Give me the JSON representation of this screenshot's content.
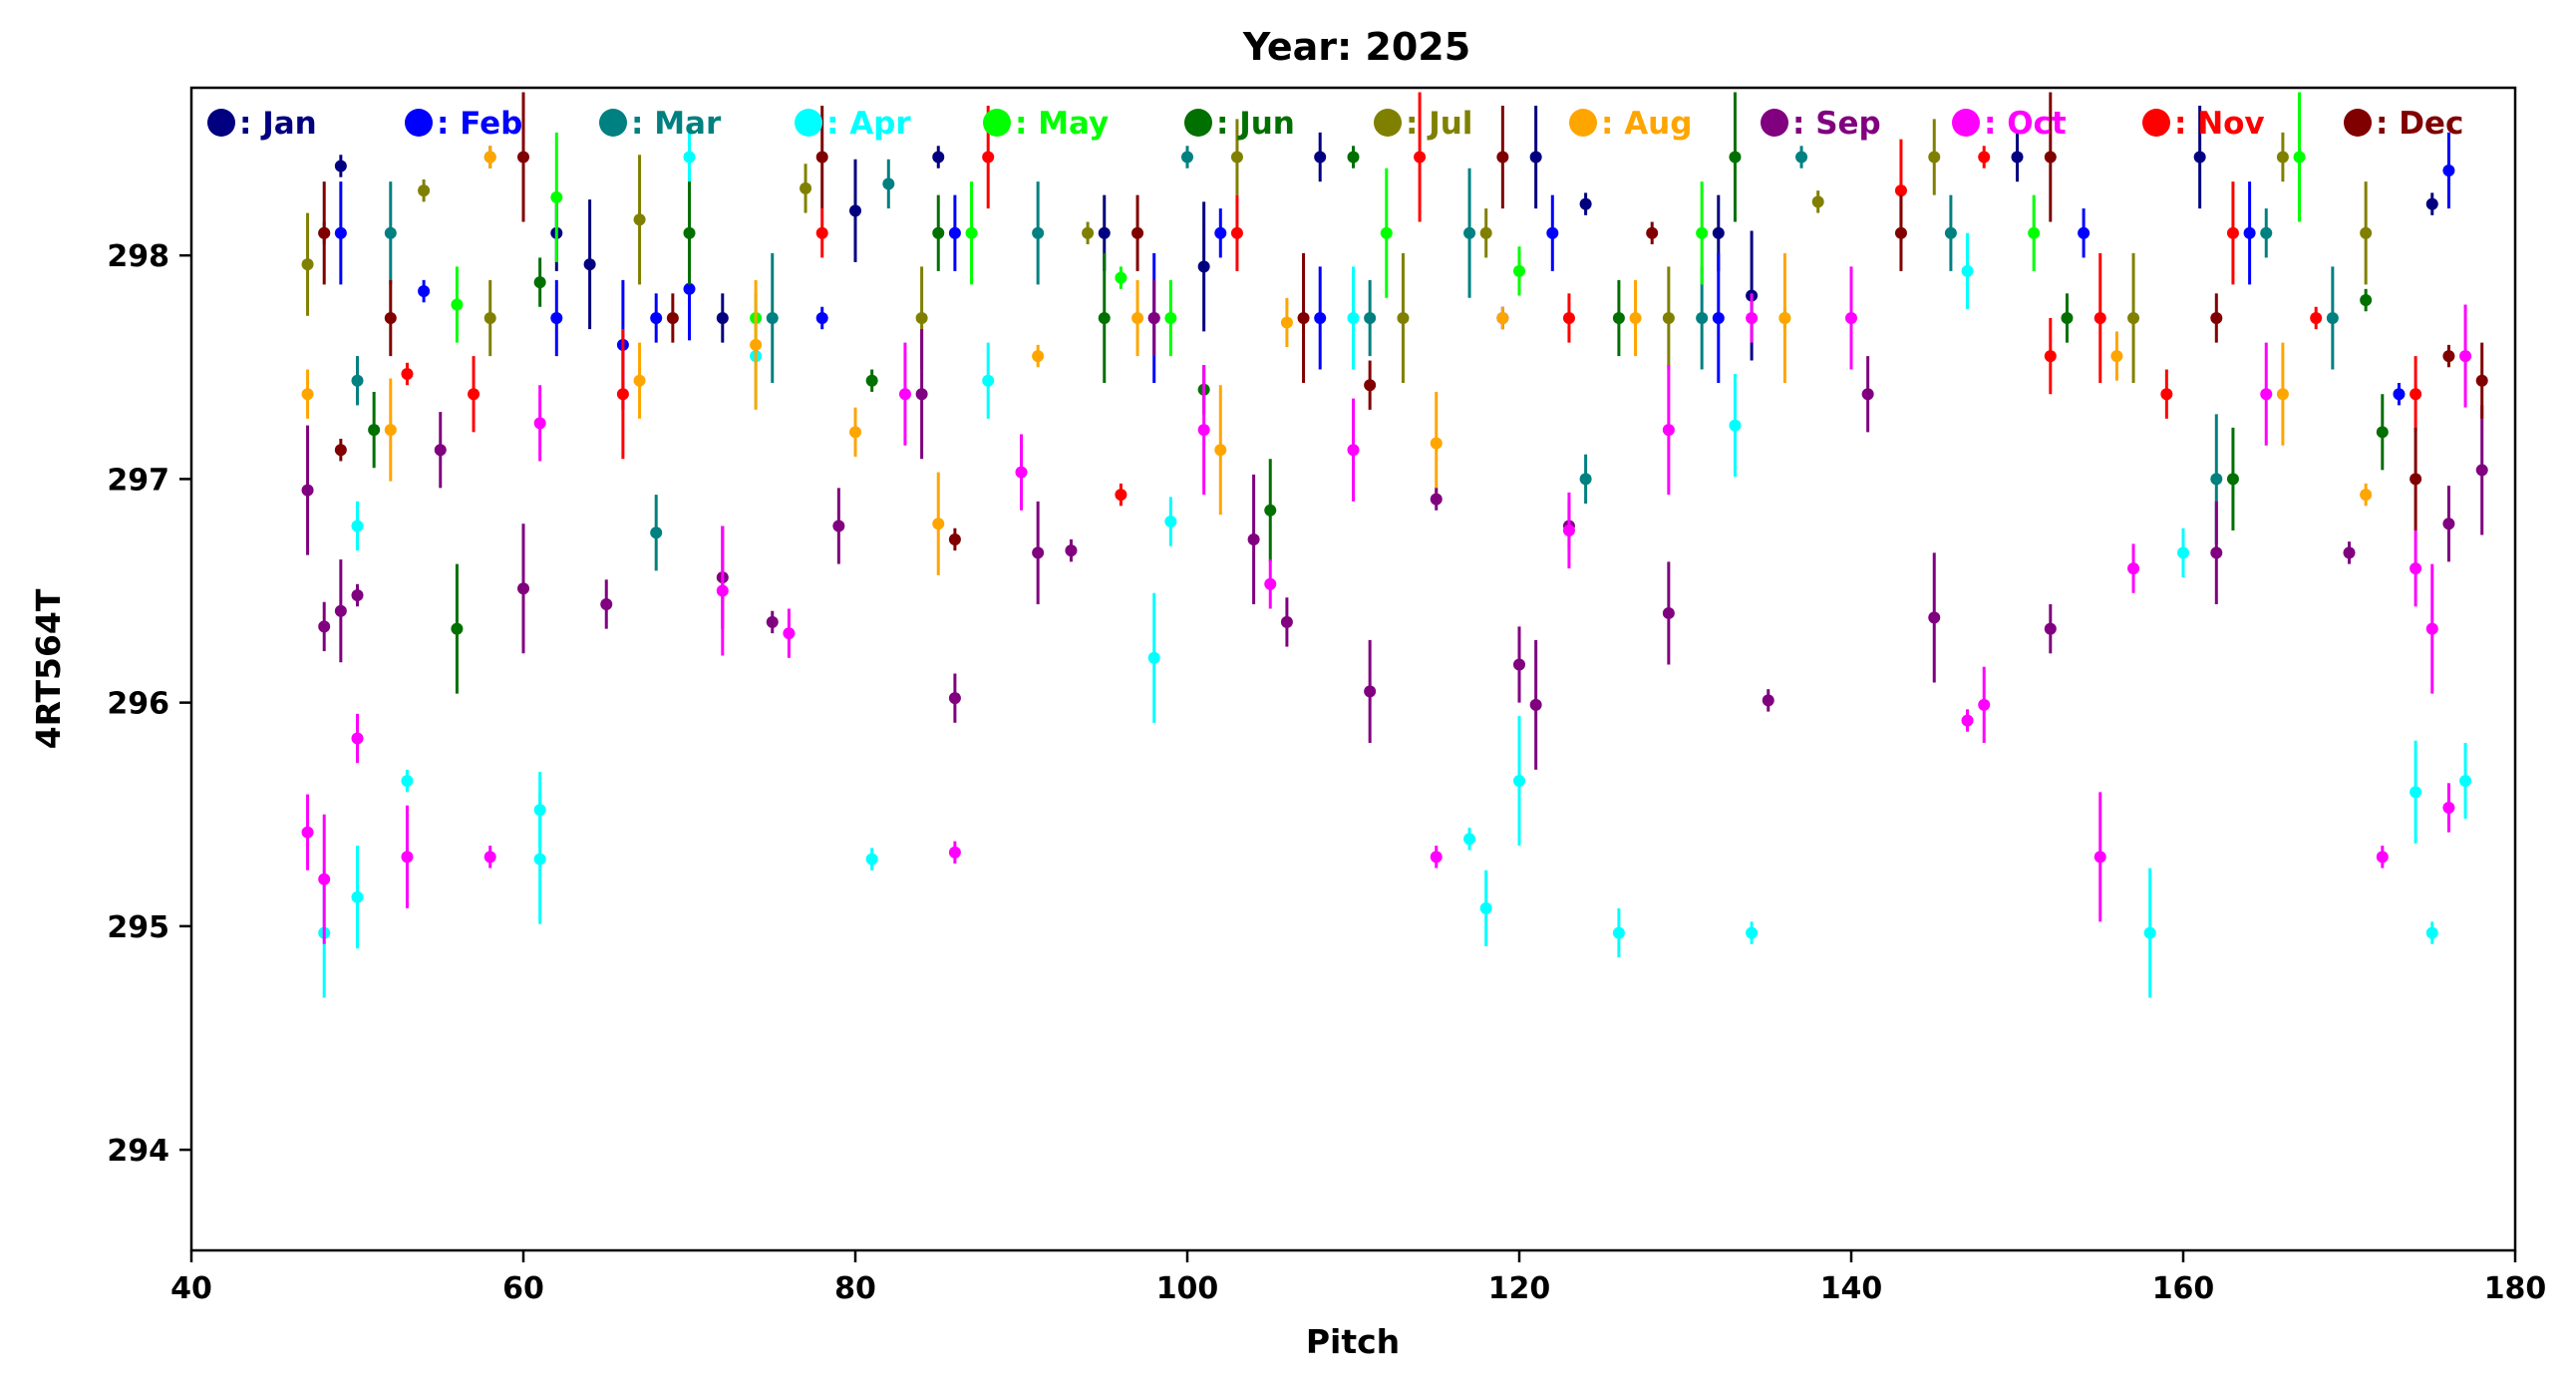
{
  "chart_data": {
    "type": "scatter",
    "title": "Year: 2025",
    "xlabel": "Pitch",
    "ylabel": "4RT564T",
    "xlim": [
      40,
      180
    ],
    "ylim": [
      293.55,
      298.75
    ],
    "xticks": [
      40,
      60,
      80,
      100,
      120,
      140,
      160,
      180
    ],
    "yticks": [
      294,
      295,
      296,
      297,
      298
    ],
    "grid": false,
    "legend_position": "top, inside plot, single row",
    "error_bars": true,
    "series": [
      {
        "name": ": Jan",
        "color": "#000080",
        "points": [
          [
            49,
            298.4
          ],
          [
            62,
            298.1
          ],
          [
            64,
            297.96
          ],
          [
            72,
            297.72
          ],
          [
            80,
            298.2
          ],
          [
            85,
            298.44
          ],
          [
            95,
            298.1
          ],
          [
            101,
            297.95
          ],
          [
            108,
            298.44
          ],
          [
            121,
            298.44
          ],
          [
            124,
            298.23
          ],
          [
            132,
            298.1
          ],
          [
            134,
            297.82
          ],
          [
            150,
            298.44
          ],
          [
            161,
            298.44
          ],
          [
            175,
            298.23
          ]
        ]
      },
      {
        "name": ": Feb",
        "color": "#0000ff",
        "points": [
          [
            49,
            298.1
          ],
          [
            54,
            297.84
          ],
          [
            62,
            297.72
          ],
          [
            66,
            297.6
          ],
          [
            68,
            297.72
          ],
          [
            70,
            297.85
          ],
          [
            78,
            297.72
          ],
          [
            86,
            298.1
          ],
          [
            98,
            297.72
          ],
          [
            102,
            298.1
          ],
          [
            108,
            297.72
          ],
          [
            119,
            297.72
          ],
          [
            122,
            298.1
          ],
          [
            132,
            297.72
          ],
          [
            154,
            298.1
          ],
          [
            164,
            298.1
          ],
          [
            173,
            297.38
          ],
          [
            176,
            298.38
          ]
        ]
      },
      {
        "name": ": Mar",
        "color": "#008080",
        "points": [
          [
            50,
            297.44
          ],
          [
            52,
            298.1
          ],
          [
            58,
            298.44
          ],
          [
            68,
            296.76
          ],
          [
            75,
            297.72
          ],
          [
            82,
            298.32
          ],
          [
            91,
            298.1
          ],
          [
            100,
            298.44
          ],
          [
            111,
            297.72
          ],
          [
            117,
            298.1
          ],
          [
            124,
            297.0
          ],
          [
            131,
            297.72
          ],
          [
            137,
            298.44
          ],
          [
            146,
            298.1
          ],
          [
            162,
            297.0
          ],
          [
            165,
            298.1
          ],
          [
            169,
            297.72
          ]
        ]
      },
      {
        "name": ": Apr",
        "color": "#00ffff",
        "points": [
          [
            48,
            294.97
          ],
          [
            50,
            296.79
          ],
          [
            50,
            295.13
          ],
          [
            53,
            295.65
          ],
          [
            61,
            295.52
          ],
          [
            61,
            295.3
          ],
          [
            70,
            298.44
          ],
          [
            74,
            297.55
          ],
          [
            81,
            295.3
          ],
          [
            88,
            297.44
          ],
          [
            98,
            296.2
          ],
          [
            99,
            296.81
          ],
          [
            110,
            297.72
          ],
          [
            117,
            295.39
          ],
          [
            118,
            295.08
          ],
          [
            120,
            295.65
          ],
          [
            126,
            294.97
          ],
          [
            133,
            297.24
          ],
          [
            134,
            294.97
          ],
          [
            147,
            297.93
          ],
          [
            158,
            294.97
          ],
          [
            160,
            296.67
          ],
          [
            174,
            295.6
          ],
          [
            175,
            294.97
          ],
          [
            177,
            295.65
          ]
        ]
      },
      {
        "name": ": May",
        "color": "#00ff00",
        "points": [
          [
            56,
            297.78
          ],
          [
            62,
            298.26
          ],
          [
            74,
            297.72
          ],
          [
            87,
            298.1
          ],
          [
            96,
            297.9
          ],
          [
            99,
            297.72
          ],
          [
            112,
            298.1
          ],
          [
            120,
            297.93
          ],
          [
            131,
            298.1
          ],
          [
            136,
            297.72
          ],
          [
            151,
            298.1
          ],
          [
            167,
            298.44
          ]
        ]
      },
      {
        "name": ": Jun",
        "color": "#007000",
        "points": [
          [
            48,
            298.1
          ],
          [
            51,
            297.22
          ],
          [
            56,
            296.33
          ],
          [
            61,
            297.88
          ],
          [
            70,
            298.1
          ],
          [
            81,
            297.44
          ],
          [
            85,
            298.1
          ],
          [
            95,
            297.72
          ],
          [
            101,
            297.4
          ],
          [
            105,
            296.86
          ],
          [
            110,
            298.44
          ],
          [
            126,
            297.72
          ],
          [
            133,
            298.44
          ],
          [
            153,
            297.72
          ],
          [
            163,
            297.0
          ],
          [
            171,
            297.8
          ],
          [
            172,
            297.21
          ]
        ]
      },
      {
        "name": ": Jul",
        "color": "#808000",
        "points": [
          [
            47,
            297.96
          ],
          [
            54,
            298.29
          ],
          [
            58,
            297.72
          ],
          [
            67,
            298.16
          ],
          [
            77,
            298.3
          ],
          [
            84,
            297.72
          ],
          [
            94,
            298.1
          ],
          [
            103,
            298.44
          ],
          [
            113,
            297.72
          ],
          [
            118,
            298.1
          ],
          [
            129,
            297.72
          ],
          [
            138,
            298.24
          ],
          [
            145,
            298.44
          ],
          [
            157,
            297.72
          ],
          [
            166,
            298.44
          ],
          [
            171,
            298.1
          ]
        ]
      },
      {
        "name": ": Aug",
        "color": "#ffa500",
        "points": [
          [
            47,
            297.38
          ],
          [
            52,
            297.22
          ],
          [
            58,
            298.44
          ],
          [
            67,
            297.44
          ],
          [
            74,
            297.6
          ],
          [
            80,
            297.21
          ],
          [
            85,
            296.8
          ],
          [
            91,
            297.55
          ],
          [
            97,
            297.72
          ],
          [
            102,
            297.13
          ],
          [
            106,
            297.7
          ],
          [
            115,
            297.16
          ],
          [
            119,
            297.72
          ],
          [
            127,
            297.72
          ],
          [
            136,
            297.72
          ],
          [
            156,
            297.55
          ],
          [
            166,
            297.38
          ],
          [
            171,
            296.93
          ]
        ]
      },
      {
        "name": ": Sep",
        "color": "#800080",
        "points": [
          [
            47,
            296.95
          ],
          [
            48,
            296.34
          ],
          [
            49,
            296.41
          ],
          [
            50,
            296.48
          ],
          [
            55,
            297.13
          ],
          [
            60,
            296.51
          ],
          [
            65,
            296.44
          ],
          [
            72,
            296.56
          ],
          [
            75,
            296.36
          ],
          [
            79,
            296.79
          ],
          [
            84,
            297.38
          ],
          [
            86,
            296.02
          ],
          [
            91,
            296.67
          ],
          [
            93,
            296.68
          ],
          [
            98,
            297.72
          ],
          [
            104,
            296.73
          ],
          [
            106,
            296.36
          ],
          [
            111,
            296.05
          ],
          [
            115,
            296.91
          ],
          [
            120,
            296.17
          ],
          [
            121,
            295.99
          ],
          [
            123,
            296.79
          ],
          [
            129,
            296.4
          ],
          [
            135,
            296.01
          ],
          [
            141,
            297.38
          ],
          [
            145,
            296.38
          ],
          [
            152,
            296.33
          ],
          [
            162,
            296.67
          ],
          [
            170,
            296.67
          ],
          [
            176,
            296.8
          ],
          [
            178,
            297.04
          ]
        ]
      },
      {
        "name": ": Oct",
        "color": "#ff00ff",
        "points": [
          [
            47,
            295.42
          ],
          [
            48,
            295.21
          ],
          [
            50,
            295.84
          ],
          [
            53,
            295.31
          ],
          [
            58,
            295.31
          ],
          [
            61,
            297.25
          ],
          [
            72,
            296.5
          ],
          [
            76,
            296.31
          ],
          [
            83,
            297.38
          ],
          [
            86,
            295.33
          ],
          [
            90,
            297.03
          ],
          [
            101,
            297.22
          ],
          [
            105,
            296.53
          ],
          [
            110,
            297.13
          ],
          [
            115,
            295.31
          ],
          [
            123,
            296.77
          ],
          [
            129,
            297.22
          ],
          [
            134,
            297.72
          ],
          [
            140,
            297.72
          ],
          [
            147,
            295.92
          ],
          [
            148,
            295.99
          ],
          [
            155,
            295.31
          ],
          [
            157,
            296.6
          ],
          [
            165,
            297.38
          ],
          [
            172,
            295.31
          ],
          [
            174,
            296.6
          ],
          [
            175,
            296.33
          ],
          [
            176,
            295.53
          ],
          [
            177,
            297.55
          ]
        ]
      },
      {
        "name": ": Nov",
        "color": "#ff0000",
        "points": [
          [
            53,
            297.47
          ],
          [
            57,
            297.38
          ],
          [
            66,
            297.38
          ],
          [
            78,
            298.1
          ],
          [
            88,
            298.44
          ],
          [
            96,
            296.93
          ],
          [
            103,
            298.1
          ],
          [
            114,
            298.44
          ],
          [
            123,
            297.72
          ],
          [
            143,
            298.29
          ],
          [
            148,
            298.44
          ],
          [
            152,
            297.55
          ],
          [
            155,
            297.72
          ],
          [
            159,
            297.38
          ],
          [
            163,
            298.1
          ],
          [
            168,
            297.72
          ],
          [
            174,
            297.38
          ]
        ]
      },
      {
        "name": ": Dec",
        "color": "#800000",
        "points": [
          [
            48,
            298.1
          ],
          [
            49,
            297.13
          ],
          [
            52,
            297.72
          ],
          [
            60,
            298.44
          ],
          [
            69,
            297.72
          ],
          [
            78,
            298.44
          ],
          [
            86,
            296.73
          ],
          [
            97,
            298.1
          ],
          [
            107,
            297.72
          ],
          [
            111,
            297.42
          ],
          [
            119,
            298.44
          ],
          [
            128,
            298.1
          ],
          [
            143,
            298.1
          ],
          [
            152,
            298.44
          ],
          [
            162,
            297.72
          ],
          [
            174,
            297.0
          ],
          [
            176,
            297.55
          ],
          [
            178,
            297.44
          ]
        ]
      }
    ]
  }
}
